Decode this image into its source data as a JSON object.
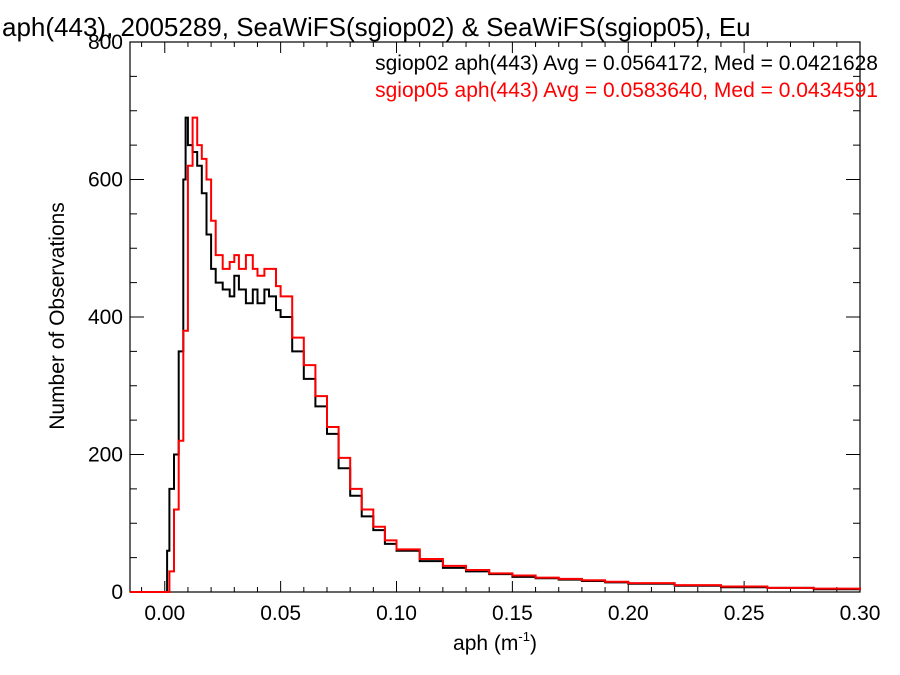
{
  "chart_data": {
    "type": "line",
    "title": "aph(443), 2005289, SeaWiFS(sgiop02) & SeaWiFS(sgiop05), Eu",
    "xlabel": "aph (m",
    "xlabel_sup": "-1",
    "xlabel_close": ")",
    "ylabel": "Number of Observations",
    "xlim": [
      -0.015,
      0.3
    ],
    "ylim": [
      0,
      800
    ],
    "x_ticks": [
      0.0,
      0.05,
      0.1,
      0.15,
      0.2,
      0.25,
      0.3
    ],
    "x_tick_labels": [
      "0.00",
      "0.05",
      "0.10",
      "0.15",
      "0.20",
      "0.25",
      "0.30"
    ],
    "y_ticks": [
      0,
      200,
      400,
      600,
      800
    ],
    "y_tick_labels": [
      "0",
      "200",
      "400",
      "600",
      "800"
    ],
    "grid": false,
    "legend_placement": "top-right",
    "annotations": [
      {
        "text": "sgiop02 aph(443) Avg = 0.0564172, Med = 0.0421628",
        "color": "#000000"
      },
      {
        "text": "sgiop05 aph(443) Avg = 0.0583640, Med = 0.0434591",
        "color": "#ff0000"
      }
    ],
    "series": [
      {
        "color": "#000000",
        "style": "step",
        "x": [
          -0.015,
          0.0,
          0.001,
          0.002,
          0.004,
          0.006,
          0.008,
          0.009,
          0.01,
          0.012,
          0.014,
          0.016,
          0.018,
          0.02,
          0.022,
          0.025,
          0.028,
          0.03,
          0.032,
          0.035,
          0.038,
          0.04,
          0.043,
          0.045,
          0.048,
          0.05,
          0.055,
          0.06,
          0.065,
          0.07,
          0.075,
          0.08,
          0.085,
          0.09,
          0.095,
          0.1,
          0.11,
          0.12,
          0.13,
          0.14,
          0.15,
          0.16,
          0.17,
          0.18,
          0.19,
          0.2,
          0.22,
          0.24,
          0.26,
          0.28,
          0.3
        ],
        "y": [
          0,
          0,
          60,
          150,
          200,
          350,
          600,
          690,
          650,
          640,
          620,
          580,
          520,
          470,
          450,
          440,
          430,
          460,
          440,
          420,
          440,
          420,
          440,
          430,
          410,
          400,
          350,
          310,
          270,
          230,
          180,
          140,
          110,
          90,
          70,
          60,
          45,
          35,
          30,
          26,
          22,
          20,
          18,
          16,
          14,
          12,
          9,
          7,
          6,
          4,
          3
        ]
      },
      {
        "color": "#ff0000",
        "style": "step",
        "x": [
          -0.015,
          0.001,
          0.002,
          0.004,
          0.006,
          0.008,
          0.01,
          0.012,
          0.014,
          0.016,
          0.018,
          0.02,
          0.022,
          0.025,
          0.028,
          0.03,
          0.032,
          0.035,
          0.038,
          0.04,
          0.043,
          0.045,
          0.048,
          0.05,
          0.055,
          0.06,
          0.065,
          0.07,
          0.075,
          0.08,
          0.085,
          0.09,
          0.095,
          0.1,
          0.11,
          0.12,
          0.13,
          0.14,
          0.15,
          0.16,
          0.17,
          0.18,
          0.19,
          0.2,
          0.22,
          0.24,
          0.26,
          0.28,
          0.3
        ],
        "y": [
          0,
          0,
          30,
          120,
          220,
          380,
          620,
          690,
          650,
          630,
          600,
          540,
          490,
          470,
          480,
          490,
          470,
          490,
          470,
          460,
          470,
          470,
          445,
          430,
          370,
          330,
          285,
          240,
          195,
          150,
          120,
          95,
          75,
          62,
          48,
          38,
          32,
          27,
          24,
          21,
          19,
          17,
          15,
          13,
          10,
          8,
          6,
          5,
          3
        ]
      }
    ]
  }
}
